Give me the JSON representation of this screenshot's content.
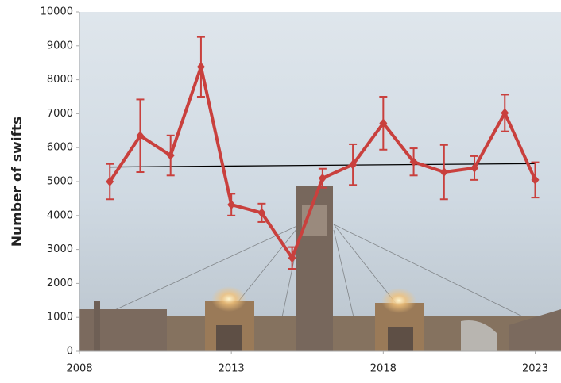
{
  "chart_data": {
    "type": "line",
    "ylabel": "Number of swifts",
    "x": [
      2009,
      2010,
      2011,
      2012,
      2013,
      2014,
      2015,
      2016,
      2017,
      2018,
      2019,
      2020,
      2021,
      2022,
      2023
    ],
    "values": [
      5000,
      6350,
      5770,
      8380,
      4320,
      4080,
      2750,
      5100,
      5500,
      6720,
      5580,
      5280,
      5400,
      7020,
      5050
    ],
    "errors": [
      520,
      1070,
      590,
      880,
      320,
      270,
      320,
      280,
      600,
      780,
      400,
      800,
      350,
      540,
      520
    ],
    "color": "#c9403d",
    "trend": {
      "x": [
        2009,
        2023
      ],
      "values": [
        5430,
        5530
      ],
      "color": "#000000"
    },
    "xlim": [
      2008,
      2023.85
    ],
    "xticks": [
      2008,
      2013,
      2018,
      2023
    ],
    "ylim": [
      0,
      10000
    ],
    "yticks": [
      0,
      1000,
      2000,
      3000,
      4000,
      5000,
      6000,
      7000,
      8000,
      9000,
      10000
    ]
  }
}
